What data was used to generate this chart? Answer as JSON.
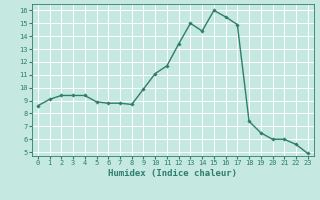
{
  "x": [
    0,
    1,
    2,
    3,
    4,
    5,
    6,
    7,
    8,
    9,
    10,
    11,
    12,
    13,
    14,
    15,
    16,
    17,
    18,
    19,
    20,
    21,
    22,
    23
  ],
  "y": [
    8.6,
    9.1,
    9.4,
    9.4,
    9.4,
    8.9,
    8.8,
    8.8,
    8.7,
    9.9,
    11.1,
    11.7,
    13.4,
    15.0,
    14.4,
    16.0,
    15.5,
    14.9,
    7.4,
    6.5,
    6.0,
    6.0,
    5.6,
    4.9
  ],
  "line_color": "#2e7d6e",
  "marker": "D",
  "marker_size": 1.8,
  "linewidth": 1.0,
  "xlabel": "Humidex (Indice chaleur)",
  "xlim": [
    -0.5,
    23.5
  ],
  "ylim": [
    4.7,
    16.5
  ],
  "yticks": [
    5,
    6,
    7,
    8,
    9,
    10,
    11,
    12,
    13,
    14,
    15,
    16
  ],
  "xticks": [
    0,
    1,
    2,
    3,
    4,
    5,
    6,
    7,
    8,
    9,
    10,
    11,
    12,
    13,
    14,
    15,
    16,
    17,
    18,
    19,
    20,
    21,
    22,
    23
  ],
  "bg_color": "#c5e8e0",
  "grid_color": "#ffffff",
  "text_color": "#2e7d6e",
  "tick_fontsize": 5.0,
  "xlabel_fontsize": 6.5
}
